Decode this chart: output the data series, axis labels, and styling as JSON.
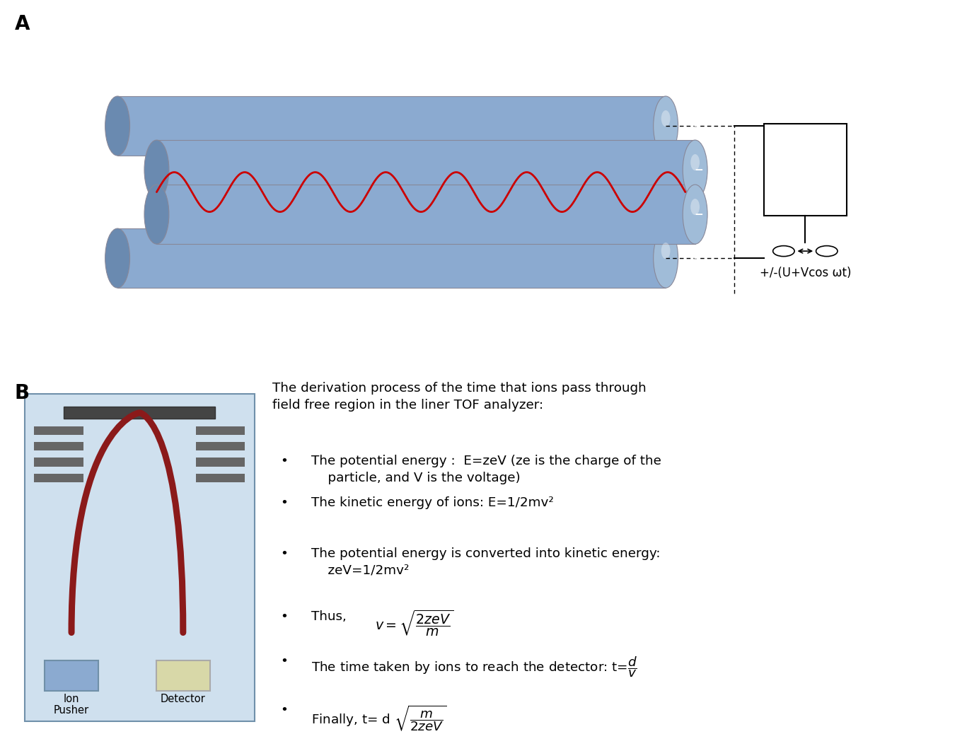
{
  "panel_A_label": "A",
  "panel_B_label": "B",
  "voltage_label": "+/-(U+Vcos ωt)",
  "bg_color": "#ffffff",
  "rod_color": "#8baad0",
  "rod_color_dark": "#6a8ab0",
  "rod_color_end": "#a0bcd8",
  "wave_color": "#cc0000",
  "box_bg": "#cfe0ee",
  "box_border": "#7090aa",
  "ion_pusher_color": "#8baad0",
  "ion_pusher_border": "#7090a8",
  "detector_color": "#d8d8a8",
  "detector_border": "#aaaaaa",
  "tof_line_color": "#8b1a1a",
  "plate_color": "#666666",
  "plate_color_dark": "#444444"
}
